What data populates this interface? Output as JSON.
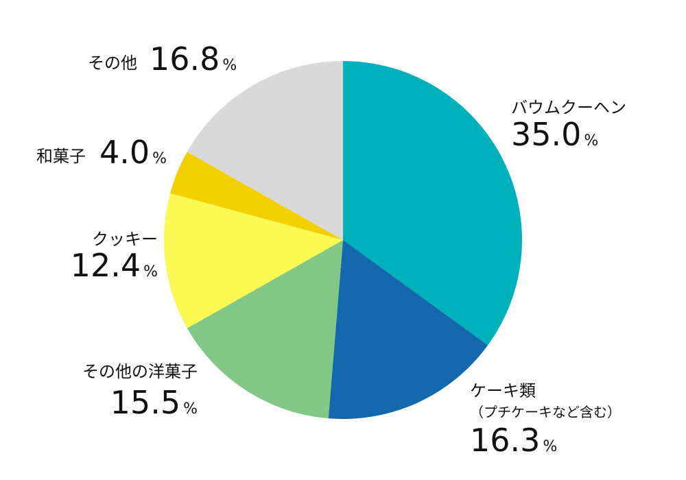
{
  "chart_data": {
    "type": "pie",
    "categories": [
      "バウムクーヘン",
      "ケーキ類",
      "その他の洋菓子",
      "クッキー",
      "和菓子",
      "その他"
    ],
    "category_notes": [
      null,
      "（プチケーキなど含む）",
      null,
      null,
      null,
      null
    ],
    "values": [
      35.0,
      16.3,
      15.5,
      12.4,
      4.0,
      16.8
    ],
    "value_labels": [
      "35.0%",
      "16.3%",
      "15.5%",
      "12.4%",
      "4.0%",
      "16.8%"
    ],
    "colors": [
      "#00b0bb",
      "#1368ad",
      "#82c786",
      "#fbfa55",
      "#f2d000",
      "#d9d9d9"
    ]
  }
}
